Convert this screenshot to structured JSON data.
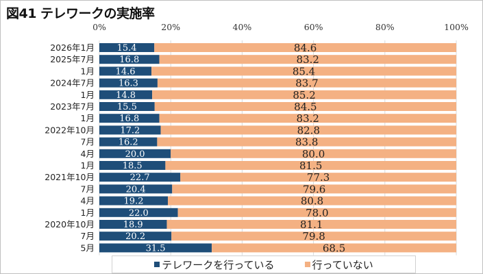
{
  "chart_data": {
    "type": "bar",
    "stacked": true,
    "orientation": "horizontal",
    "title": "図41 テレワークの実施率",
    "xlabel": "",
    "ylabel": "",
    "xlim": [
      0,
      100
    ],
    "xticks": [
      "0%",
      "20%",
      "40%",
      "60%",
      "80%",
      "100%"
    ],
    "grid": true,
    "legend_position": "bottom",
    "categories": [
      "2026年1月",
      "2025年7月",
      "1月",
      "2024年7月",
      "1月",
      "2023年7月",
      "1月",
      "2022年10月",
      "7月",
      "4月",
      "1月",
      "2021年10月",
      "7月",
      "4月",
      "1月",
      "2020年10月",
      "7月",
      "5月"
    ],
    "series": [
      {
        "name": "テレワークを行っている",
        "color": "#1f4e79",
        "values": [
          15.4,
          16.8,
          14.6,
          16.3,
          14.8,
          15.5,
          16.8,
          17.2,
          16.2,
          20.0,
          18.5,
          22.7,
          20.4,
          19.2,
          22.0,
          18.9,
          20.2,
          31.5
        ]
      },
      {
        "name": "行っていない",
        "color": "#f4b183",
        "values": [
          84.6,
          83.2,
          85.4,
          83.7,
          85.2,
          84.5,
          83.2,
          82.8,
          83.8,
          80.0,
          81.5,
          77.3,
          79.6,
          80.8,
          78.0,
          81.1,
          79.8,
          68.5
        ]
      }
    ]
  }
}
